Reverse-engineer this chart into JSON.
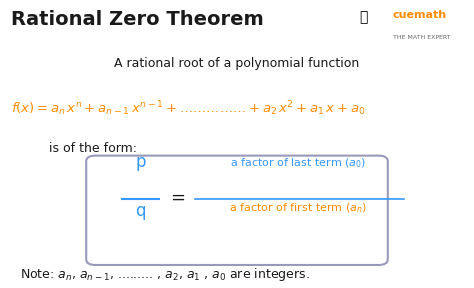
{
  "title": "Rational Zero Theorem",
  "title_fontsize": 14,
  "bg_color": "#ffffff",
  "orange_color": "#FF8C00",
  "blue_color": "#3399FF",
  "black_color": "#1a1a1a",
  "gray_color": "#666666",
  "cuemath_text": "cuemath",
  "cuemath_sub": "THE MATH EXPERT",
  "line1": "A rational root of a polynomial function",
  "is_of": "is of the form:",
  "note": "Note: a",
  "box_edge_color": "#aaaacc",
  "p_label": "p",
  "q_label": "q",
  "equals": "=",
  "num_text": "a factor of last term (a",
  "num_sub": "0",
  "den_text": "a factor of first term (a",
  "den_sub": "n"
}
